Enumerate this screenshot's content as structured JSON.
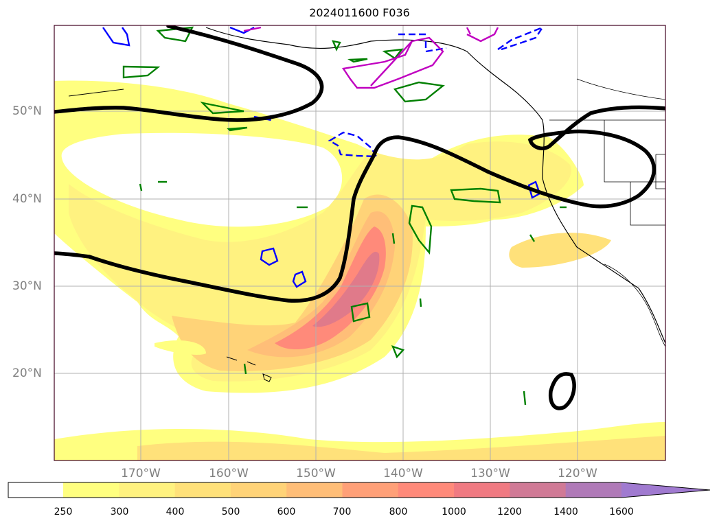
{
  "title": "2024011600 F036",
  "lat_labels": [
    "50°N",
    "40°N",
    "30°N",
    "20°N"
  ],
  "lon_labels": [
    "170°W",
    "160°W",
    "150°W",
    "140°W",
    "130°W",
    "120°W"
  ],
  "colorbar": {
    "ticks": [
      "250",
      "300",
      "400",
      "500",
      "600",
      "700",
      "800",
      "1000",
      "1200",
      "1400",
      "1600"
    ],
    "colors": [
      "#ffff80",
      "#fff280",
      "#ffe17a",
      "#ffd378",
      "#ffbe78",
      "#ffa078",
      "#ff8a7a",
      "#f07a82",
      "#d07a96",
      "#b07ab8",
      "#a07ad0"
    ],
    "extend": "max"
  },
  "contour_colors": {
    "thick": "#000000",
    "green": "#008000",
    "blue_solid": "#0000ff",
    "blue_dashed": "#0000ff",
    "magenta": "#c000c0"
  }
}
